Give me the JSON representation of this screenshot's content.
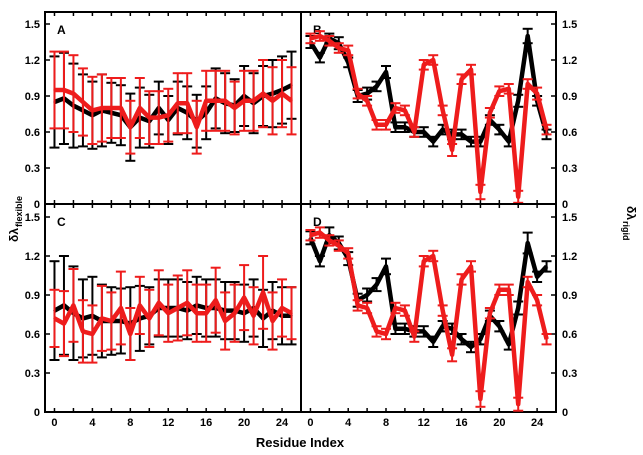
{
  "chart_data": {
    "type": "line",
    "xlabel": "Residue Index",
    "ylabel_left": {
      "symbol": "δλ",
      "subscript": "flexible"
    },
    "ylabel_right": {
      "symbol": "δλ",
      "subscript": "rigid"
    },
    "xlim": [
      -1,
      26
    ],
    "ylim": [
      0,
      1.6
    ],
    "xticks": [
      0,
      4,
      8,
      12,
      16,
      20,
      24
    ],
    "yticks": [
      0,
      0.3,
      0.6,
      0.9,
      1.2,
      1.5
    ],
    "series_colors": {
      "black": "#000000",
      "red": "#ee1c1c"
    },
    "panels": [
      {
        "id": "A",
        "series": [
          {
            "name": "black",
            "values": [
              0.85,
              0.88,
              0.82,
              0.78,
              0.74,
              0.78,
              0.76,
              0.74,
              0.64,
              0.72,
              0.69,
              0.8,
              0.7,
              0.8,
              0.76,
              0.69,
              0.76,
              0.88,
              0.84,
              0.82,
              0.9,
              0.84,
              0.9,
              0.92,
              0.95,
              0.99
            ],
            "err": [
              0.38,
              0.38,
              0.35,
              0.3,
              0.28,
              0.3,
              0.25,
              0.25,
              0.28,
              0.25,
              0.22,
              0.22,
              0.2,
              0.22,
              0.22,
              0.22,
              0.22,
              0.25,
              0.25,
              0.22,
              0.25,
              0.25,
              0.25,
              0.28,
              0.28,
              0.28
            ]
          },
          {
            "name": "red",
            "values": [
              0.95,
              0.95,
              0.92,
              0.85,
              0.78,
              0.8,
              0.8,
              0.8,
              0.64,
              0.8,
              0.72,
              0.72,
              0.74,
              0.84,
              0.84,
              0.64,
              0.86,
              0.86,
              0.86,
              0.8,
              0.86,
              0.86,
              0.92,
              0.86,
              0.92,
              0.86
            ],
            "err": [
              0.32,
              0.32,
              0.32,
              0.28,
              0.28,
              0.28,
              0.25,
              0.25,
              0.22,
              0.25,
              0.22,
              0.22,
              0.22,
              0.25,
              0.25,
              0.22,
              0.25,
              0.25,
              0.25,
              0.22,
              0.25,
              0.25,
              0.28,
              0.28,
              0.28,
              0.28
            ]
          }
        ]
      },
      {
        "id": "B",
        "series": [
          {
            "name": "black",
            "values": [
              1.35,
              1.22,
              1.38,
              1.34,
              1.18,
              0.9,
              0.92,
              0.98,
              1.1,
              0.64,
              0.64,
              0.6,
              0.6,
              0.52,
              0.62,
              0.58,
              0.58,
              0.52,
              0.52,
              0.7,
              0.62,
              0.52,
              0.86,
              1.4,
              0.86,
              0.58
            ],
            "err": [
              0.05,
              0.04,
              0.04,
              0.05,
              0.04,
              0.05,
              0.05,
              0.04,
              0.05,
              0.04,
              0.04,
              0.04,
              0.04,
              0.04,
              0.04,
              0.04,
              0.04,
              0.04,
              0.04,
              0.04,
              0.04,
              0.04,
              0.05,
              0.06,
              0.04,
              0.04
            ]
          },
          {
            "name": "red",
            "values": [
              1.38,
              1.4,
              1.36,
              1.3,
              1.28,
              0.92,
              0.86,
              0.66,
              0.66,
              0.8,
              0.78,
              0.6,
              1.16,
              1.2,
              0.78,
              0.45,
              1.04,
              1.12,
              0.1,
              0.76,
              0.94,
              0.96,
              0.06,
              1.0,
              0.92,
              0.62
            ],
            "err": [
              0.04,
              0.04,
              0.04,
              0.04,
              0.04,
              0.04,
              0.04,
              0.04,
              0.04,
              0.04,
              0.04,
              0.04,
              0.04,
              0.04,
              0.04,
              0.05,
              0.04,
              0.04,
              0.06,
              0.04,
              0.04,
              0.04,
              0.05,
              0.04,
              0.05,
              0.04
            ]
          }
        ]
      },
      {
        "id": "C",
        "series": [
          {
            "name": "black",
            "values": [
              0.78,
              0.82,
              0.76,
              0.72,
              0.74,
              0.7,
              0.7,
              0.7,
              0.68,
              0.72,
              0.74,
              0.8,
              0.8,
              0.8,
              0.78,
              0.82,
              0.8,
              0.8,
              0.78,
              0.78,
              0.76,
              0.8,
              0.72,
              0.78,
              0.74,
              0.74
            ],
            "err": [
              0.38,
              0.38,
              0.36,
              0.3,
              0.3,
              0.28,
              0.26,
              0.25,
              0.28,
              0.25,
              0.22,
              0.22,
              0.22,
              0.22,
              0.22,
              0.22,
              0.22,
              0.22,
              0.22,
              0.22,
              0.22,
              0.22,
              0.22,
              0.22,
              0.22,
              0.22
            ]
          },
          {
            "name": "red",
            "values": [
              0.72,
              0.68,
              0.82,
              0.62,
              0.6,
              0.72,
              0.7,
              0.8,
              0.6,
              0.82,
              0.72,
              0.84,
              0.76,
              0.8,
              0.84,
              0.76,
              0.76,
              0.86,
              0.7,
              0.76,
              0.88,
              0.74,
              0.92,
              0.7,
              0.8,
              0.76
            ],
            "err": [
              0.22,
              0.25,
              0.28,
              0.24,
              0.22,
              0.25,
              0.22,
              0.28,
              0.2,
              0.22,
              0.22,
              0.25,
              0.22,
              0.25,
              0.25,
              0.22,
              0.22,
              0.25,
              0.22,
              0.22,
              0.25,
              0.22,
              0.28,
              0.22,
              0.22,
              0.2
            ]
          }
        ]
      },
      {
        "id": "D",
        "series": [
          {
            "name": "black",
            "values": [
              1.34,
              1.16,
              1.36,
              1.3,
              1.18,
              0.86,
              0.9,
              0.98,
              1.12,
              0.64,
              0.64,
              0.62,
              0.62,
              0.54,
              0.66,
              0.64,
              0.56,
              0.5,
              0.56,
              0.74,
              0.66,
              0.52,
              0.8,
              1.3,
              1.04,
              1.12
            ],
            "err": [
              0.05,
              0.04,
              0.06,
              0.05,
              0.05,
              0.05,
              0.05,
              0.05,
              0.06,
              0.04,
              0.04,
              0.04,
              0.04,
              0.04,
              0.04,
              0.04,
              0.04,
              0.04,
              0.04,
              0.04,
              0.04,
              0.04,
              0.05,
              0.08,
              0.04,
              0.04
            ]
          },
          {
            "name": "red",
            "values": [
              1.36,
              1.38,
              1.32,
              1.28,
              1.22,
              0.82,
              0.8,
              0.62,
              0.6,
              0.8,
              0.78,
              0.58,
              1.16,
              1.2,
              0.78,
              0.44,
              1.02,
              1.12,
              0.1,
              0.76,
              0.94,
              0.94,
              0.06,
              1.0,
              0.86,
              0.56
            ],
            "err": [
              0.04,
              0.04,
              0.04,
              0.04,
              0.04,
              0.04,
              0.04,
              0.04,
              0.04,
              0.04,
              0.04,
              0.04,
              0.04,
              0.04,
              0.04,
              0.05,
              0.04,
              0.04,
              0.06,
              0.04,
              0.04,
              0.04,
              0.05,
              0.04,
              0.04,
              0.04
            ]
          }
        ]
      }
    ]
  }
}
